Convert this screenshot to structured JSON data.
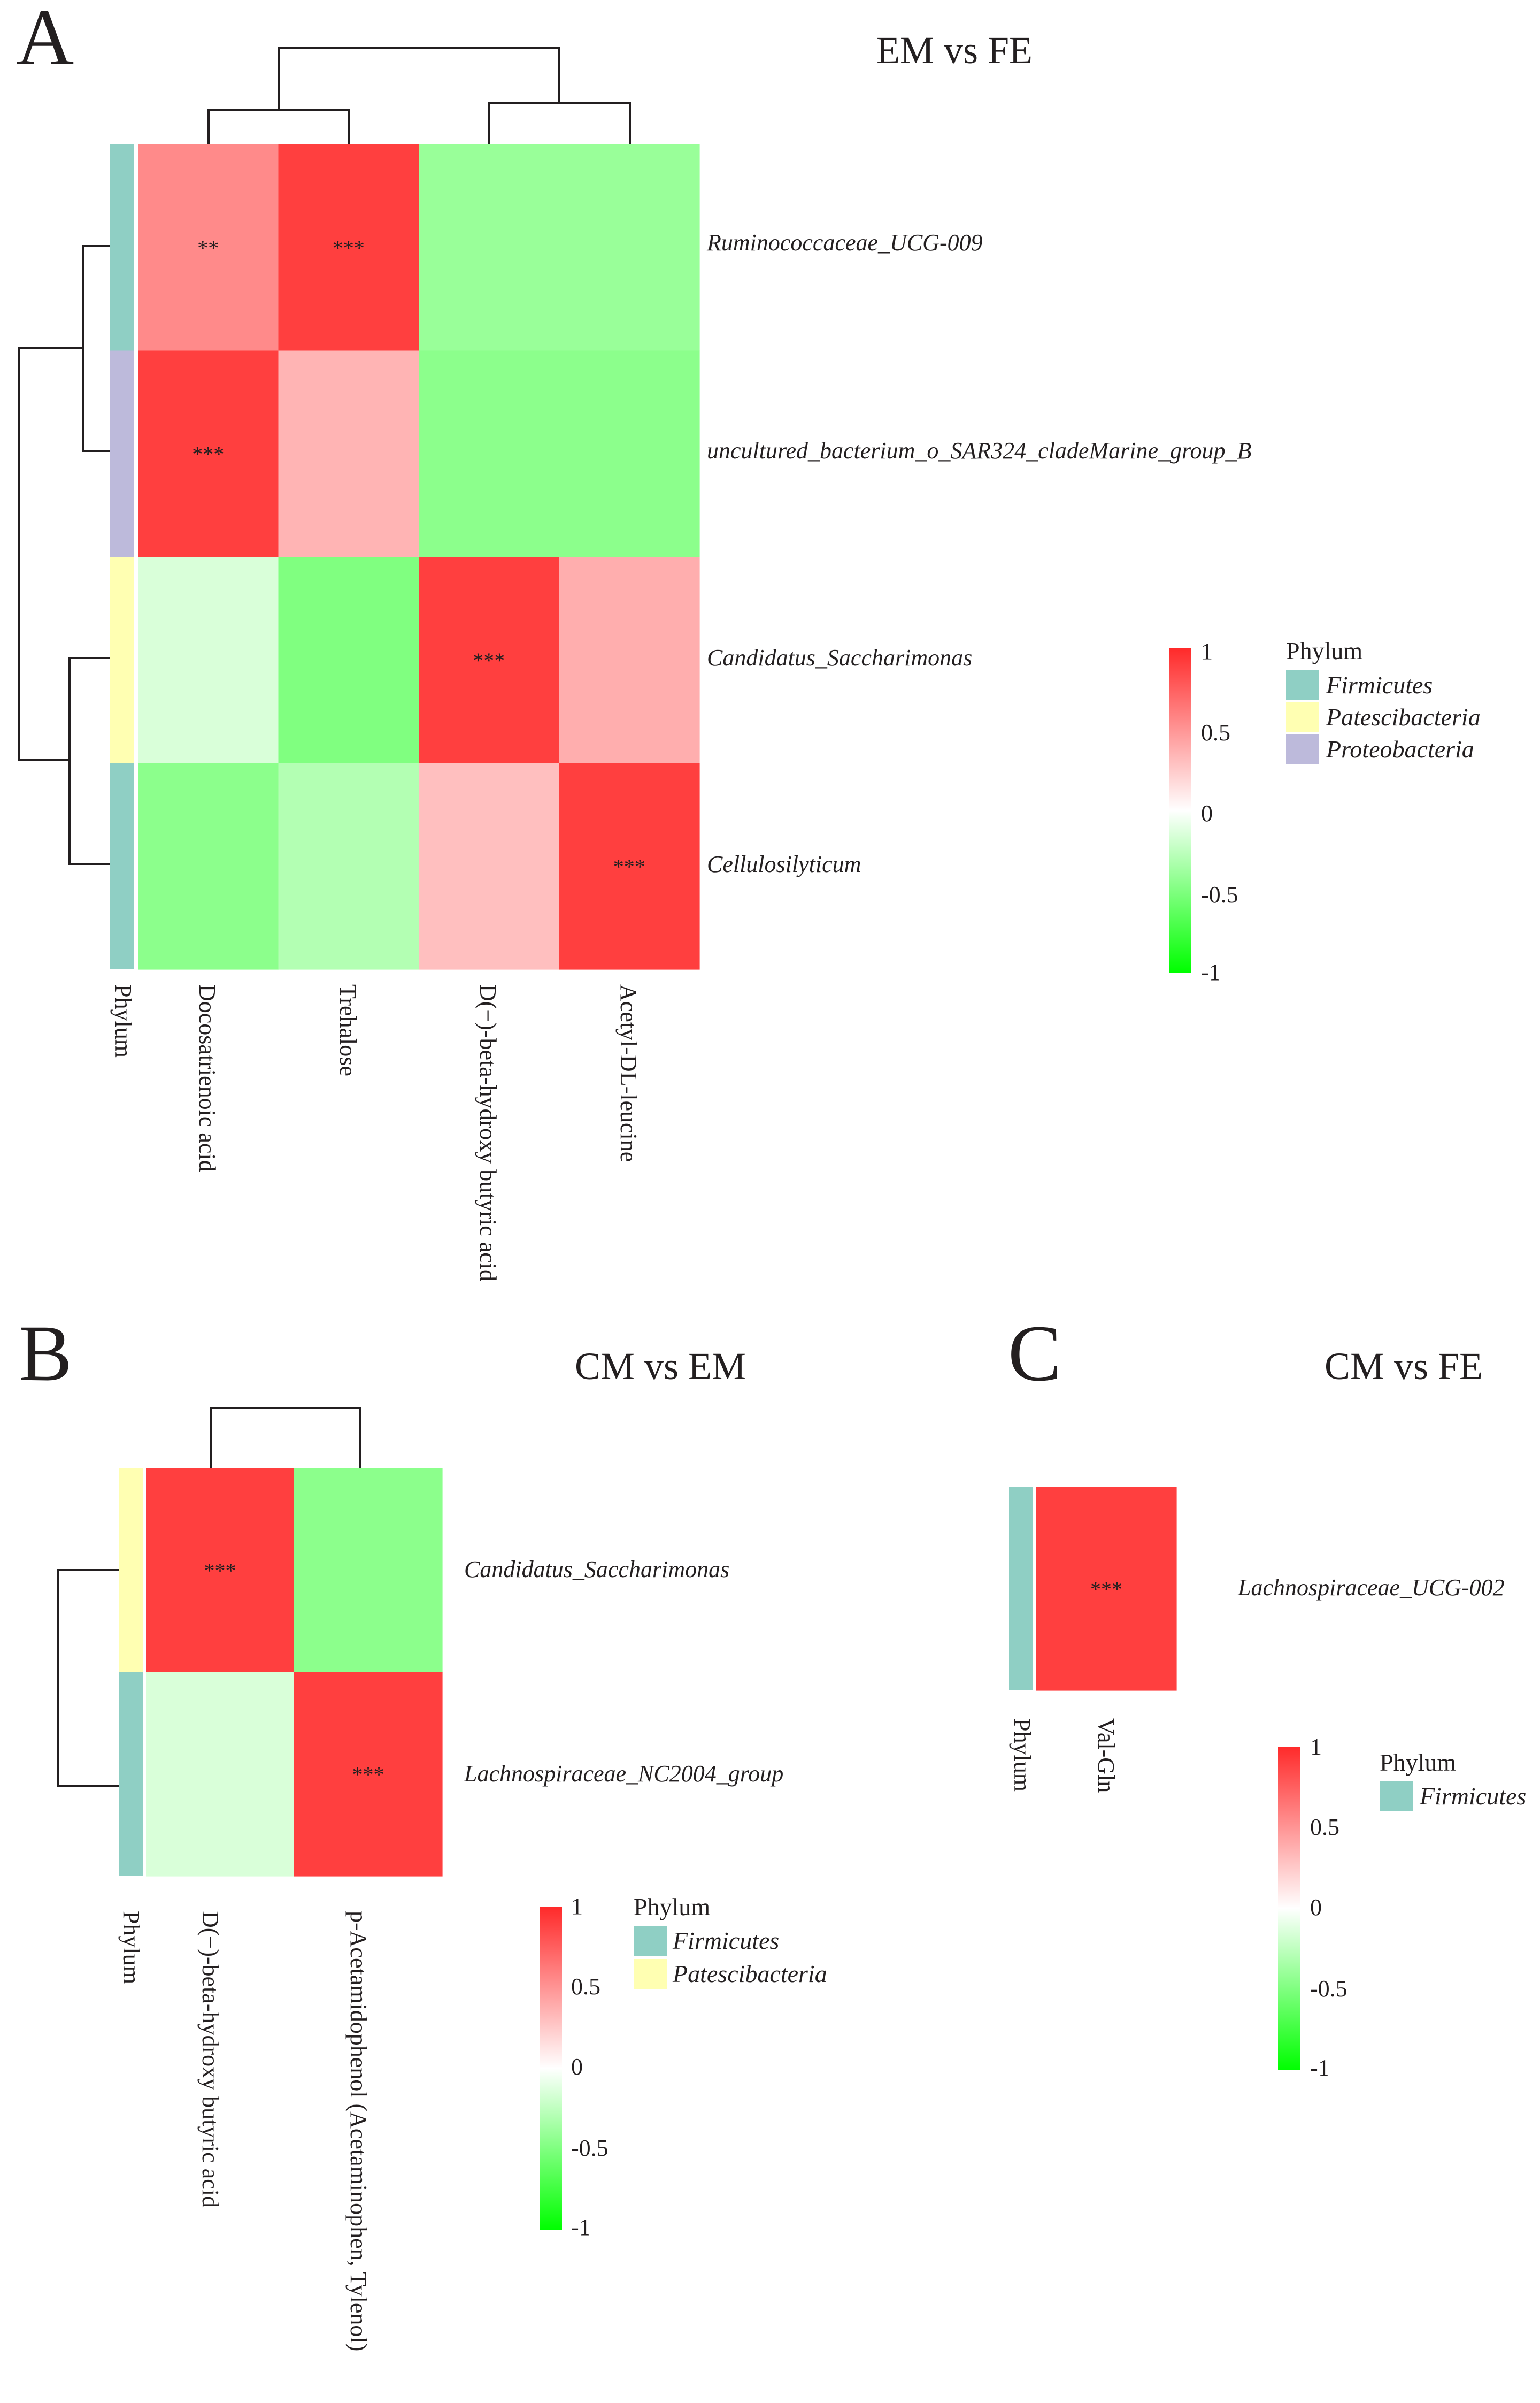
{
  "chart_data": [
    {
      "panel": "A",
      "type": "heatmap",
      "title": "EM vs FE",
      "columns": [
        "Docosatrienoic acid",
        "Trehalose",
        "D(−)-beta-hydroxy butyric acid",
        "Acetyl-DL-leucine"
      ],
      "rows": [
        "Ruminococcaceae_UCG-009",
        "uncultured_bacterium_o_SAR324_cladeMarine_group_B",
        "Candidatus_Saccharimonas",
        "Cellulosilyticum"
      ],
      "row_phylum": [
        "Firmicutes",
        "Proteobacteria",
        "Patescibacteria",
        "Firmicutes"
      ],
      "values": [
        [
          0.55,
          0.9,
          -0.4,
          -0.4
        ],
        [
          0.9,
          0.35,
          -0.45,
          -0.45
        ],
        [
          -0.15,
          -0.5,
          0.9,
          0.38
        ],
        [
          -0.45,
          -0.3,
          0.3,
          0.9
        ]
      ],
      "significance": [
        [
          "**",
          "***",
          "",
          ""
        ],
        [
          "***",
          "",
          "",
          ""
        ],
        [
          "",
          "",
          "***",
          ""
        ],
        [
          "",
          "",
          "",
          "***"
        ]
      ],
      "phylum_axis_label": "Phylum",
      "colorbar": {
        "ticks": [
          "1",
          "0.5",
          "0",
          "-0.5",
          "-1"
        ],
        "range": [
          -1,
          1
        ]
      },
      "legend": {
        "title": "Phylum",
        "entries": [
          "Firmicutes",
          "Patescibacteria",
          "Proteobacteria"
        ]
      }
    },
    {
      "panel": "B",
      "type": "heatmap",
      "title": "CM vs EM",
      "columns": [
        "D(−)-beta-hydroxy butyric acid",
        "p-Acetamidophenol (Acetaminophen, Tylenol)"
      ],
      "rows": [
        "Candidatus_Saccharimonas",
        "Lachnospiraceae_NC2004_group"
      ],
      "row_phylum": [
        "Patescibacteria",
        "Firmicutes"
      ],
      "values": [
        [
          0.9,
          -0.45
        ],
        [
          -0.15,
          0.9
        ]
      ],
      "significance": [
        [
          "***",
          ""
        ],
        [
          "",
          "***"
        ]
      ],
      "phylum_axis_label": "Phylum",
      "colorbar": {
        "ticks": [
          "1",
          "0.5",
          "0",
          "-0.5",
          "-1"
        ],
        "range": [
          -1,
          1
        ]
      },
      "legend": {
        "title": "Phylum",
        "entries": [
          "Firmicutes",
          "Patescibacteria"
        ]
      }
    },
    {
      "panel": "C",
      "type": "heatmap",
      "title": "CM vs FE",
      "columns": [
        "Val-Gln"
      ],
      "rows": [
        "Lachnospiraceae_UCG-002"
      ],
      "row_phylum": [
        "Firmicutes"
      ],
      "values": [
        [
          0.9
        ]
      ],
      "significance": [
        [
          "***"
        ]
      ],
      "phylum_axis_label": "Phylum",
      "colorbar": {
        "ticks": [
          "1",
          "0.5",
          "0",
          "-0.5",
          "-1"
        ],
        "range": [
          -1,
          1
        ]
      },
      "legend": {
        "title": "Phylum",
        "entries": [
          "Firmicutes"
        ]
      }
    }
  ],
  "phylum_colors": {
    "Firmicutes": "#8fcfc4",
    "Patescibacteria": "#ffffb2",
    "Proteobacteria": "#bdbadb"
  },
  "colors": {
    "positive": "#ff2a2a",
    "neutral": "#ffffff",
    "negative": "#00ff00",
    "dendrogram": "#231f20",
    "text": "#231f20"
  }
}
